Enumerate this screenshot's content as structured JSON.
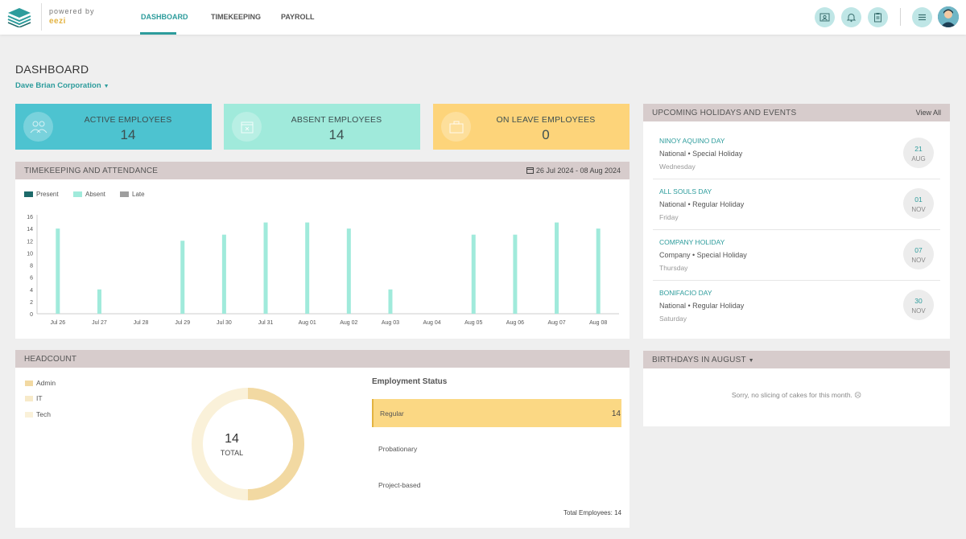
{
  "brand": {
    "powered_by": "powered by",
    "name": "eezi"
  },
  "nav": {
    "items": [
      "DASHBOARD",
      "TIMEKEEPING",
      "PAYROLL"
    ]
  },
  "topbar": {
    "icons": [
      "id-card-icon",
      "bell-icon",
      "clipboard-icon",
      "menu-icon"
    ]
  },
  "header": {
    "title": "DASHBOARD",
    "company": "Dave Brian Corporation"
  },
  "stats": [
    {
      "label": "ACTIVE EMPLOYEES",
      "value": "14",
      "color": "#4dc3d0",
      "icon": "people-icon"
    },
    {
      "label": "ABSENT EMPLOYEES",
      "value": "14",
      "color": "#a0eadb",
      "icon": "calendar-x-icon"
    },
    {
      "label": "ON LEAVE EMPLOYEES",
      "value": "0",
      "color": "#fdd47a",
      "icon": "briefcase-icon"
    }
  ],
  "timekeeping": {
    "title": "TIMEKEEPING AND ATTENDANCE",
    "date_range": "26 Jul 2024 - 08 Aug 2024"
  },
  "chart_data": {
    "type": "bar",
    "categories": [
      "Jul 26",
      "Jul 27",
      "Jul 28",
      "Jul 29",
      "Jul 30",
      "Jul 31",
      "Aug 01",
      "Aug 02",
      "Aug 03",
      "Aug 04",
      "Aug 05",
      "Aug 06",
      "Aug 07",
      "Aug 08"
    ],
    "series": [
      {
        "name": "Present",
        "color": "#1d6a6a",
        "values": [
          0,
          0,
          0,
          0,
          0,
          0,
          0,
          0,
          0,
          0,
          0,
          0,
          0,
          0
        ]
      },
      {
        "name": "Absent",
        "color": "#a0eadb",
        "values": [
          14,
          4,
          0,
          12,
          13,
          15,
          15,
          14,
          4,
          0,
          13,
          13,
          15,
          14
        ]
      },
      {
        "name": "Late",
        "color": "#9e9e9e",
        "values": [
          0,
          0,
          0,
          0,
          0,
          0,
          0,
          0,
          0,
          0,
          0,
          0,
          0,
          0
        ]
      }
    ],
    "yticks": [
      0,
      2,
      4,
      6,
      8,
      10,
      12,
      14,
      16
    ],
    "ylim": [
      0,
      16
    ],
    "legend": "top-left",
    "grid": false
  },
  "holidays": {
    "title": "UPCOMING HOLIDAYS AND EVENTS",
    "view_all": "View All",
    "items": [
      {
        "name": "NINOY AQUINO DAY",
        "type": "National • Special Holiday",
        "weekday": "Wednesday",
        "day": "21",
        "month": "AUG"
      },
      {
        "name": "ALL SOULS DAY",
        "type": "National • Regular Holiday",
        "weekday": "Friday",
        "day": "01",
        "month": "NOV"
      },
      {
        "name": "COMPANY HOLIDAY",
        "type": "Company • Special Holiday",
        "weekday": "Thursday",
        "day": "07",
        "month": "NOV"
      },
      {
        "name": "BONIFACIO DAY",
        "type": "National • Regular Holiday",
        "weekday": "Saturday",
        "day": "30",
        "month": "NOV"
      }
    ]
  },
  "headcount": {
    "title": "HEADCOUNT",
    "legend": [
      {
        "label": "Admin",
        "color": "#f2d9a2"
      },
      {
        "label": "IT",
        "color": "#f7eac9"
      },
      {
        "label": "Tech",
        "color": "#faf1d9"
      }
    ],
    "donut": {
      "total": "14",
      "total_label": "TOTAL",
      "segments": [
        {
          "label": "Admin",
          "value": 7,
          "color": "#f2d9a2"
        },
        {
          "label": "IT",
          "value": 7,
          "color": "#faf1d9"
        }
      ]
    },
    "employment_status": {
      "title": "Employment Status",
      "rows": [
        {
          "label": "Regular",
          "count": "14"
        },
        {
          "label": "Probationary",
          "count": ""
        },
        {
          "label": "Project-based",
          "count": ""
        }
      ],
      "total_label": "Total Employees:",
      "total": "14"
    }
  },
  "birthdays": {
    "title": "BIRTHDAYS IN AUGUST",
    "message": "Sorry, no slicing of cakes for this month. ☹"
  }
}
